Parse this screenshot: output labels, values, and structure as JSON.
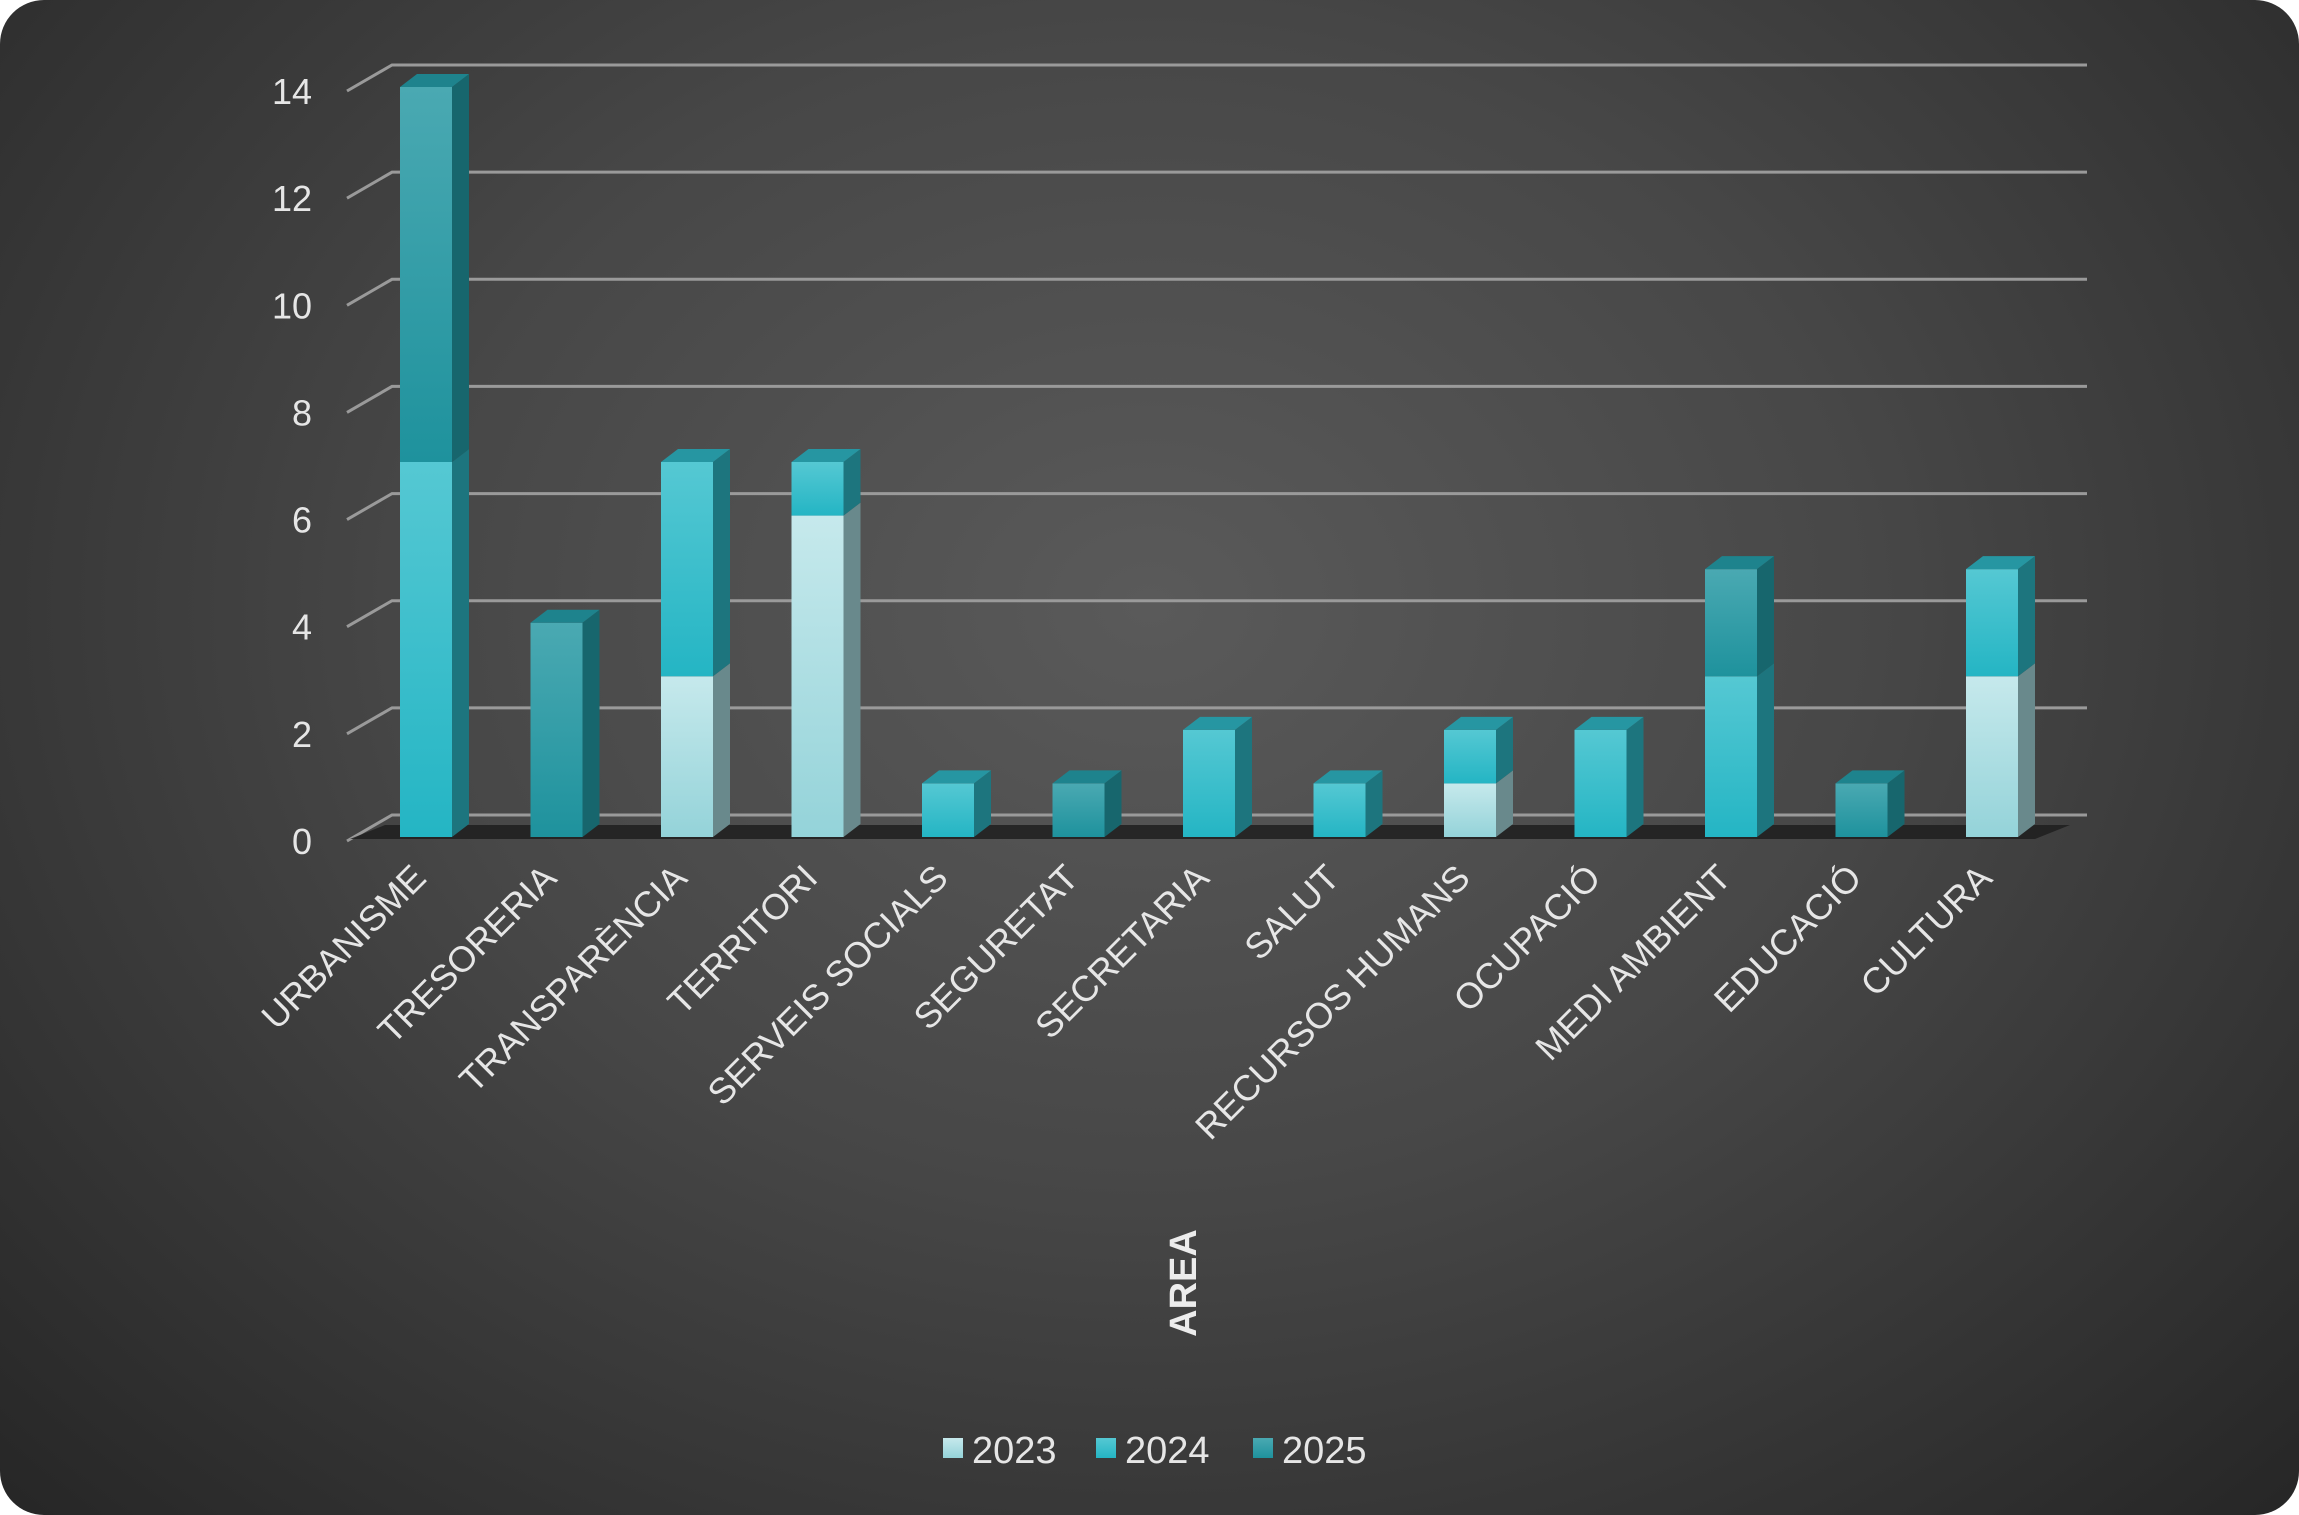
{
  "chart_data": {
    "type": "bar",
    "stacked": true,
    "style": "3d",
    "categories": [
      "URBANISME",
      "TRESORERIA",
      "TRANSPARÈNCIA",
      "TERRITORI",
      "SERVEIS SOCIALS",
      "SEGURETAT",
      "SECRETARIA",
      "SALUT",
      "RECURSOS HUMANS",
      "OCUPACIÓ",
      "MEDI AMBIENT",
      "EDUCACIÓ",
      "CULTURA"
    ],
    "series": [
      {
        "name": "2023",
        "values": [
          0,
          0,
          3,
          6,
          0,
          0,
          0,
          0,
          1,
          0,
          0,
          0,
          3
        ]
      },
      {
        "name": "2024",
        "values": [
          7,
          0,
          4,
          1,
          1,
          0,
          2,
          1,
          1,
          2,
          3,
          0,
          2
        ]
      },
      {
        "name": "2025",
        "values": [
          7,
          4,
          0,
          0,
          0,
          1,
          0,
          0,
          0,
          0,
          2,
          1,
          0
        ]
      }
    ],
    "title": "",
    "xlabel": "AREA",
    "ylabel": "",
    "ylim": [
      0,
      14
    ],
    "yticks": [
      "0",
      "2",
      "4",
      "6",
      "8",
      "10",
      "12",
      "14"
    ],
    "grid": true,
    "legend": "bottom",
    "colors": {
      "2023": "#a9dde2",
      "2024": "#2fbccb",
      "2025": "#25a4b0"
    }
  }
}
